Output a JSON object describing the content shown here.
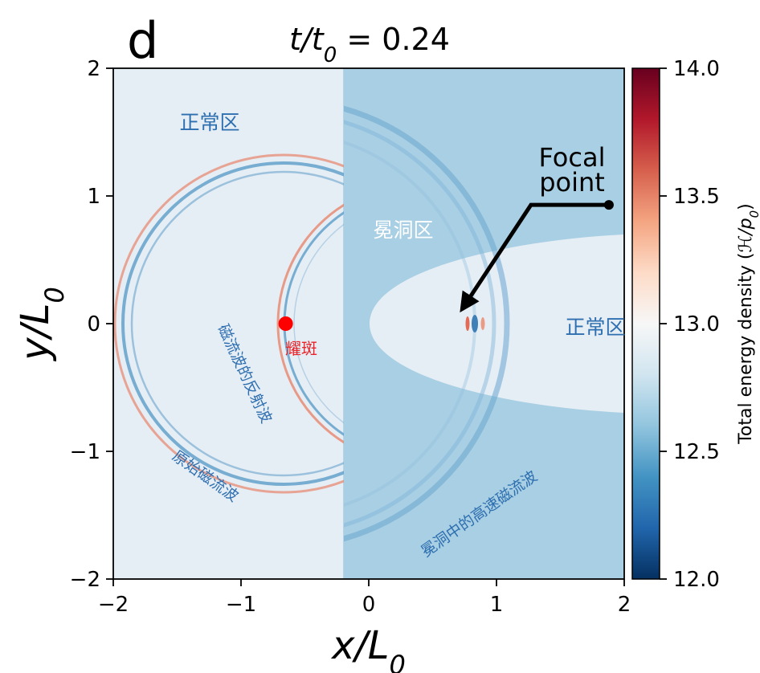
{
  "panel_label": "d",
  "title": {
    "base": "t/t",
    "sub": "0",
    "rest": " = 0.24"
  },
  "annotations": {
    "normal_left": "正常区",
    "normal_right": "正常区",
    "cavity": "冕洞区",
    "flare": "耀斑",
    "reflected": "磁流波的反射波",
    "original": "原始磁流波",
    "fast_wave": "冕洞中的高速磁流波",
    "focal_line1": "Focal",
    "focal_line2": "point"
  },
  "colorbar": {
    "label_text": "Total energy density (",
    "label_math": "ℋ/p",
    "label_sub": "0",
    "label_end": ")",
    "ticks": [
      "12.0",
      "12.5",
      "13.0",
      "13.5",
      "14.0"
    ],
    "range": [
      12.0,
      14.0
    ],
    "colormap": "RdBu_r"
  },
  "chart_data": {
    "type": "heatmap",
    "xlabel": {
      "base": "x/L",
      "sub": "0"
    },
    "ylabel": {
      "base": "y/L",
      "sub": "0"
    },
    "xlim": [
      -2,
      2
    ],
    "ylim": [
      -2,
      2
    ],
    "xticks": [
      -2,
      -1,
      0,
      1,
      2
    ],
    "yticks": [
      -2,
      -1,
      0,
      1,
      2
    ],
    "xtick_labels": [
      "−2",
      "−1",
      "0",
      "1",
      "2"
    ],
    "ytick_labels": [
      "−2",
      "−1",
      "0",
      "1",
      "2"
    ],
    "cavity_boundary_x": -0.2,
    "flare_point": {
      "x": -0.65,
      "y": 0.0
    },
    "focal_point": {
      "x": 0.68,
      "y": 0.0
    },
    "focal_label_anchor": {
      "x": 1.88,
      "y": 0.93
    },
    "normal_region_energy": 12.92,
    "cavity_region_energy": 12.65,
    "colors": {
      "normal": "#e6eef5",
      "cavity": "#a8cfe3",
      "wave_red": "#e7846b",
      "wave_blue": "#5d9cc9",
      "flare": "#ff0000",
      "label_blue": "#2e6fb0",
      "label_red": "#e8242a"
    }
  }
}
